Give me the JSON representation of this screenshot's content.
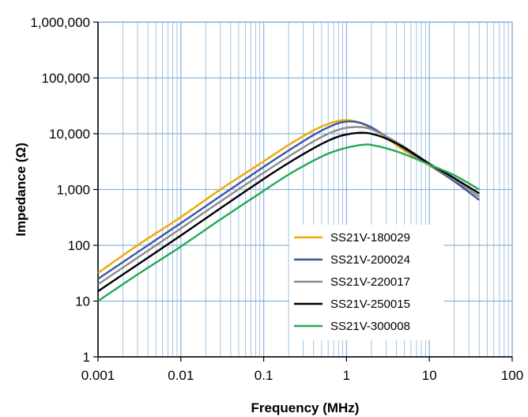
{
  "chart_data": {
    "type": "line",
    "title": "",
    "xlabel": "Frequency (MHz)",
    "ylabel": "Impedance (Ω)",
    "x_scale": "log",
    "y_scale": "log",
    "xlim": [
      0.001,
      100
    ],
    "ylim": [
      1,
      1000000
    ],
    "x_ticks": [
      {
        "value": 0.001,
        "label": "0.001"
      },
      {
        "value": 0.01,
        "label": "0.01"
      },
      {
        "value": 0.1,
        "label": "0.1"
      },
      {
        "value": 1,
        "label": "1"
      },
      {
        "value": 10,
        "label": "10"
      },
      {
        "value": 100,
        "label": "100"
      }
    ],
    "y_ticks": [
      {
        "value": 1,
        "label": "1"
      },
      {
        "value": 10,
        "label": "10"
      },
      {
        "value": 100,
        "label": "100"
      },
      {
        "value": 1000,
        "label": "1,000"
      },
      {
        "value": 10000,
        "label": "10,000"
      },
      {
        "value": 100000,
        "label": "100,000"
      },
      {
        "value": 1000000,
        "label": "1,000,000"
      }
    ],
    "grid": true,
    "minor_grid": true,
    "grid_color": "#8fb4d9",
    "legend_position": "lower-right",
    "series": [
      {
        "name": "SS21V-180029",
        "color": "#f0a800",
        "x": [
          0.001,
          0.003,
          0.01,
          0.03,
          0.1,
          0.2,
          0.4,
          0.6,
          0.8,
          1.0,
          1.2,
          1.5,
          2,
          3,
          5,
          10,
          20,
          40
        ],
        "y": [
          32,
          100,
          320,
          1000,
          3200,
          6300,
          11500,
          15000,
          17000,
          17500,
          17000,
          15500,
          12500,
          8500,
          5000,
          2700,
          1400,
          650
        ]
      },
      {
        "name": "SS21V-200024",
        "color": "#3a56a5",
        "x": [
          0.001,
          0.003,
          0.01,
          0.03,
          0.1,
          0.2,
          0.4,
          0.6,
          0.8,
          1.0,
          1.2,
          1.5,
          2,
          3,
          5,
          10,
          20,
          40
        ],
        "y": [
          25,
          75,
          250,
          760,
          2550,
          5000,
          9500,
          13000,
          15500,
          16500,
          16500,
          15500,
          13000,
          9000,
          5400,
          2800,
          1400,
          650
        ]
      },
      {
        "name": "SS21V-220017",
        "color": "#8c8c8c",
        "x": [
          0.001,
          0.003,
          0.01,
          0.03,
          0.1,
          0.2,
          0.4,
          0.6,
          0.8,
          1.0,
          1.3,
          1.6,
          2,
          3,
          5,
          10,
          20,
          40
        ],
        "y": [
          20,
          60,
          200,
          610,
          2000,
          3900,
          7300,
          10000,
          11800,
          12800,
          13200,
          13000,
          12000,
          9000,
          5800,
          2900,
          1500,
          750
        ]
      },
      {
        "name": "SS21V-250015",
        "color": "#000000",
        "x": [
          0.001,
          0.003,
          0.01,
          0.03,
          0.1,
          0.2,
          0.4,
          0.6,
          0.8,
          1.0,
          1.3,
          1.6,
          2,
          3,
          5,
          10,
          20,
          40
        ],
        "y": [
          15,
          45,
          150,
          460,
          1550,
          3000,
          5500,
          7500,
          8900,
          9700,
          10300,
          10400,
          10000,
          8200,
          5600,
          2900,
          1600,
          850
        ]
      },
      {
        "name": "SS21V-300008",
        "color": "#22aa55",
        "x": [
          0.001,
          0.003,
          0.01,
          0.03,
          0.1,
          0.2,
          0.4,
          0.6,
          0.8,
          1.0,
          1.3,
          1.7,
          2,
          3,
          5,
          10,
          20,
          40
        ],
        "y": [
          10,
          30,
          95,
          290,
          950,
          1850,
          3300,
          4400,
          5100,
          5600,
          6100,
          6400,
          6300,
          5500,
          4300,
          2800,
          1800,
          1000
        ]
      }
    ]
  }
}
